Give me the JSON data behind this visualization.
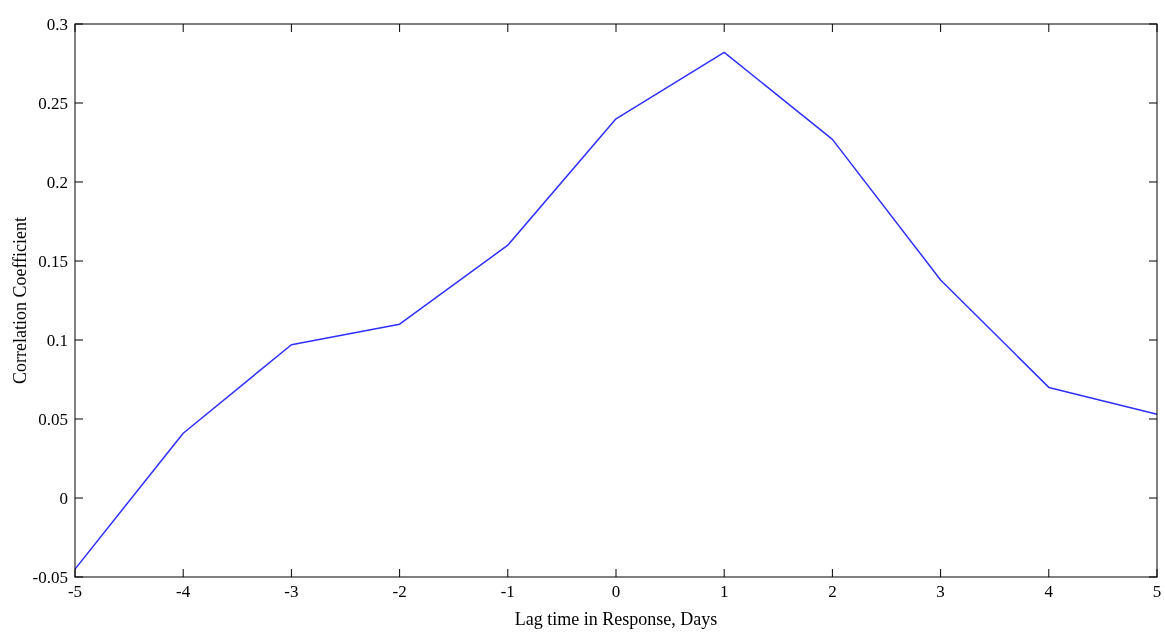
{
  "chart_data": {
    "type": "line",
    "xlabel": "Lag time in Response, Days",
    "ylabel": "Correlation Coefficient",
    "x": [
      -5,
      -4,
      -3,
      -2,
      -1,
      0,
      1,
      2,
      3,
      4,
      5
    ],
    "series": [
      {
        "color": "#2f2fff",
        "values": [
          -0.045,
          0.041,
          0.097,
          0.11,
          0.16,
          0.24,
          0.282,
          0.227,
          0.138,
          0.07,
          0.053
        ]
      }
    ],
    "xlim": [
      -5,
      5
    ],
    "xticks": [
      -5,
      -4,
      -3,
      -2,
      -1,
      0,
      1,
      2,
      3,
      4,
      5
    ],
    "ylim": [
      -0.05,
      0.3
    ],
    "yticks": [
      -0.05,
      0,
      0.05,
      0.1,
      0.15,
      0.2,
      0.25,
      0.3
    ],
    "grid": false,
    "marker": "none",
    "line_style": "solid"
  }
}
